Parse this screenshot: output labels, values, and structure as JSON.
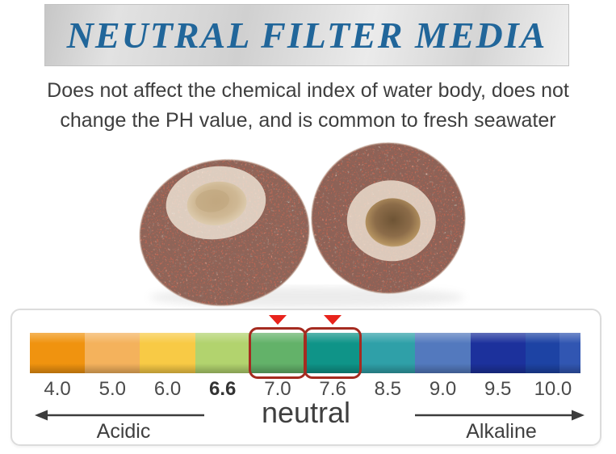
{
  "banner": {
    "title": "NEUTRAL FILTER MEDIA"
  },
  "subtitle": {
    "line1": "Does not affect the chemical index of water body, does not",
    "line2": "change the PH value, and is common to fresh seawater"
  },
  "photo": {
    "alt": "Two white ceramic ring filter media with pink-red speckles"
  },
  "ph_scale": {
    "segments": [
      {
        "ph": "4.0",
        "color": "#F0930F"
      },
      {
        "ph": "5.0",
        "color": "#F4B25C"
      },
      {
        "ph": "6.0",
        "color": "#F8CA45"
      },
      {
        "ph": "6.6",
        "color": "#B2D36E",
        "bold": true
      },
      {
        "ph": "7.0",
        "color": "#63B269",
        "boxed": true,
        "marker": true
      },
      {
        "ph": "7.6",
        "color": "#0F9488",
        "boxed": true,
        "marker": true
      },
      {
        "ph": "8.5",
        "color": "#2FA0A8"
      },
      {
        "ph": "9.0",
        "color": "#5379BE"
      },
      {
        "ph": "9.5",
        "color": "#1C319C"
      },
      {
        "ph": "10.0",
        "color": "#1D43A4",
        "color2": "#3156B2"
      }
    ],
    "neutral_label": "neutral",
    "acidic_label": "Acidic",
    "alkaline_label": "Alkaline"
  },
  "colors": {
    "banner-text": "#21669A",
    "subtitle-text": "#3E3E3E",
    "marker-red": "#E8231C",
    "box-red": "#A52B20",
    "arrow": "#3C3C3C",
    "card-border": "#DCDCDC"
  }
}
